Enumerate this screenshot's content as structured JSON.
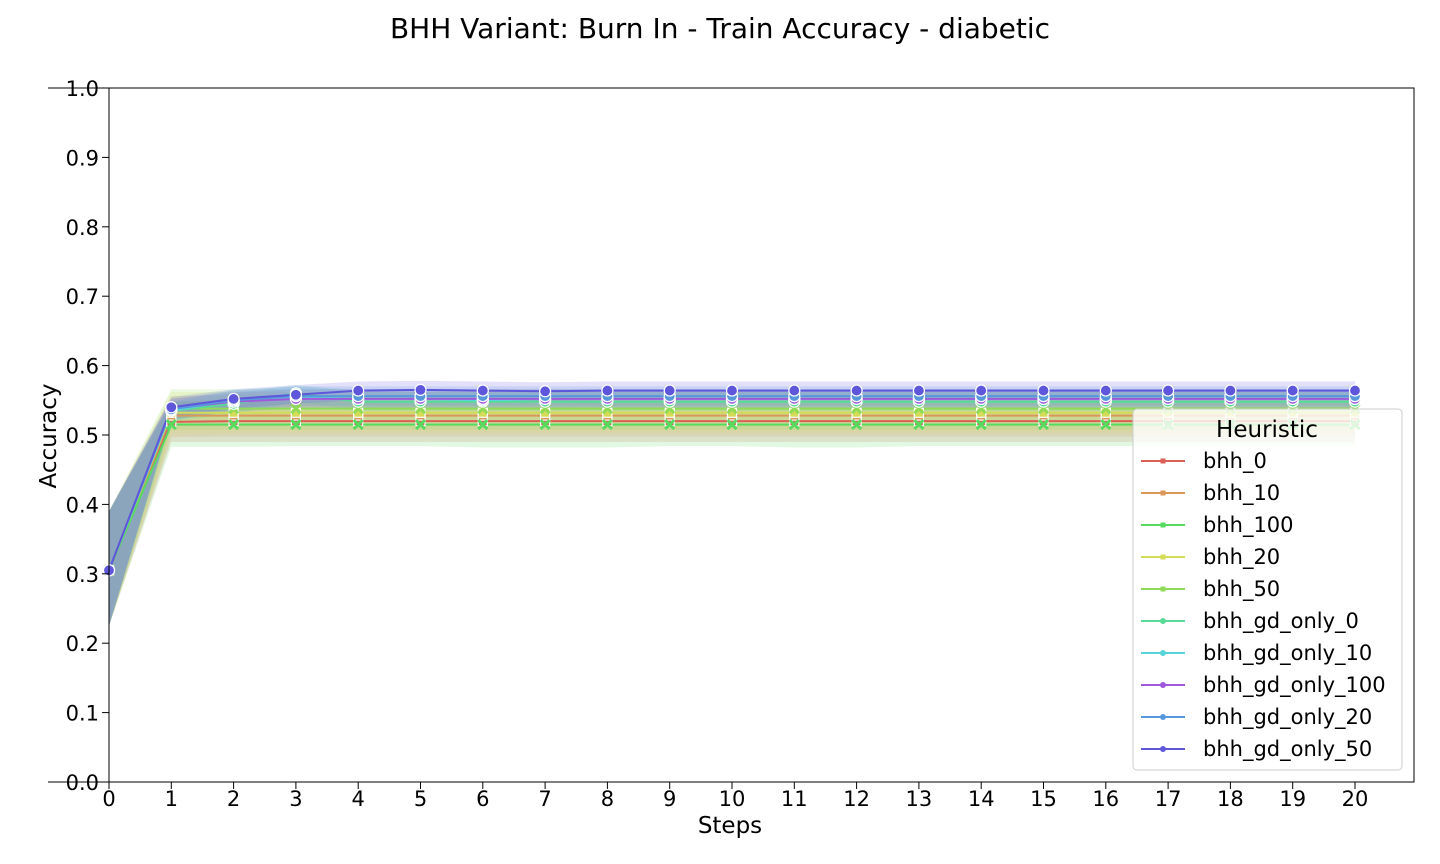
{
  "chart_data": {
    "type": "line",
    "title": "BHH Variant: Burn In - Train Accuracy - diabetic",
    "xlabel": "Steps",
    "ylabel": "Accuracy",
    "xlim": [
      0,
      21
    ],
    "ylim": [
      0,
      1
    ],
    "x_ticks": [
      0,
      1,
      2,
      3,
      4,
      5,
      6,
      7,
      8,
      9,
      10,
      11,
      12,
      13,
      14,
      15,
      16,
      17,
      18,
      19,
      20
    ],
    "y_ticks": [
      0.0,
      0.1,
      0.2,
      0.3,
      0.4,
      0.5,
      0.6,
      0.7,
      0.8,
      0.9,
      1.0
    ],
    "y_tick_labels": [
      "0.0",
      "0.1",
      "0.2",
      "0.3",
      "0.4",
      "0.5",
      "0.6",
      "0.7",
      "0.8",
      "0.9",
      "1.0"
    ],
    "grid": false,
    "legend": {
      "title": "Heuristic",
      "placement": "right"
    },
    "x": [
      0,
      1,
      2,
      3,
      4,
      5,
      6,
      7,
      8,
      9,
      10,
      11,
      12,
      13,
      14,
      15,
      16,
      17,
      18,
      19,
      20
    ],
    "series": [
      {
        "name": "bhh_0",
        "color": "#db5f57",
        "marker": "square",
        "values": [
          0.305,
          0.519,
          0.52,
          0.52,
          0.52,
          0.52,
          0.52,
          0.52,
          0.52,
          0.52,
          0.52,
          0.52,
          0.52,
          0.52,
          0.52,
          0.52,
          0.52,
          0.52,
          0.52,
          0.52,
          0.52
        ],
        "band": [
          [
            0.225,
            0.39
          ],
          [
            0.49,
            0.548
          ],
          [
            0.49,
            0.55
          ],
          [
            0.49,
            0.55
          ],
          [
            0.49,
            0.55
          ],
          [
            0.49,
            0.55
          ],
          [
            0.49,
            0.55
          ],
          [
            0.49,
            0.55
          ],
          [
            0.49,
            0.55
          ],
          [
            0.49,
            0.55
          ],
          [
            0.49,
            0.55
          ],
          [
            0.49,
            0.55
          ],
          [
            0.49,
            0.55
          ],
          [
            0.49,
            0.55
          ],
          [
            0.49,
            0.55
          ],
          [
            0.49,
            0.55
          ],
          [
            0.49,
            0.55
          ],
          [
            0.49,
            0.55
          ],
          [
            0.49,
            0.55
          ],
          [
            0.49,
            0.55
          ],
          [
            0.49,
            0.55
          ]
        ]
      },
      {
        "name": "bhh_10",
        "color": "#db9757",
        "marker": "square",
        "values": [
          0.305,
          0.528,
          0.528,
          0.528,
          0.528,
          0.528,
          0.528,
          0.528,
          0.528,
          0.528,
          0.528,
          0.528,
          0.528,
          0.528,
          0.528,
          0.528,
          0.528,
          0.528,
          0.528,
          0.528,
          0.528
        ],
        "band": [
          [
            0.225,
            0.39
          ],
          [
            0.497,
            0.556
          ],
          [
            0.498,
            0.558
          ],
          [
            0.498,
            0.558
          ],
          [
            0.498,
            0.558
          ],
          [
            0.498,
            0.558
          ],
          [
            0.498,
            0.558
          ],
          [
            0.498,
            0.558
          ],
          [
            0.498,
            0.558
          ],
          [
            0.498,
            0.558
          ],
          [
            0.498,
            0.558
          ],
          [
            0.498,
            0.558
          ],
          [
            0.498,
            0.558
          ],
          [
            0.498,
            0.558
          ],
          [
            0.498,
            0.558
          ],
          [
            0.498,
            0.558
          ],
          [
            0.498,
            0.558
          ],
          [
            0.498,
            0.558
          ],
          [
            0.498,
            0.558
          ],
          [
            0.498,
            0.558
          ],
          [
            0.498,
            0.558
          ]
        ]
      },
      {
        "name": "bhh_100",
        "color": "#57db5f",
        "marker": "x",
        "values": [
          0.305,
          0.515,
          0.515,
          0.515,
          0.515,
          0.515,
          0.515,
          0.515,
          0.515,
          0.515,
          0.515,
          0.515,
          0.515,
          0.515,
          0.515,
          0.515,
          0.515,
          0.515,
          0.515,
          0.515,
          0.515
        ],
        "band": [
          [
            0.225,
            0.39
          ],
          [
            0.483,
            0.548
          ],
          [
            0.483,
            0.548
          ],
          [
            0.484,
            0.548
          ],
          [
            0.484,
            0.548
          ],
          [
            0.484,
            0.548
          ],
          [
            0.482,
            0.548
          ],
          [
            0.482,
            0.548
          ],
          [
            0.482,
            0.548
          ],
          [
            0.484,
            0.548
          ],
          [
            0.484,
            0.548
          ],
          [
            0.482,
            0.548
          ],
          [
            0.482,
            0.548
          ],
          [
            0.484,
            0.548
          ],
          [
            0.484,
            0.548
          ],
          [
            0.484,
            0.548
          ],
          [
            0.484,
            0.548
          ],
          [
            0.484,
            0.548
          ],
          [
            0.484,
            0.548
          ],
          [
            0.484,
            0.548
          ],
          [
            0.484,
            0.548
          ]
        ]
      },
      {
        "name": "bhh_20",
        "color": "#d3db57",
        "marker": "square",
        "values": [
          0.305,
          0.532,
          0.532,
          0.532,
          0.532,
          0.532,
          0.532,
          0.532,
          0.532,
          0.532,
          0.532,
          0.532,
          0.532,
          0.532,
          0.532,
          0.532,
          0.532,
          0.532,
          0.532,
          0.532,
          0.532
        ],
        "band": [
          [
            0.225,
            0.39
          ],
          [
            0.502,
            0.562
          ],
          [
            0.503,
            0.562
          ],
          [
            0.503,
            0.562
          ],
          [
            0.503,
            0.562
          ],
          [
            0.503,
            0.562
          ],
          [
            0.503,
            0.562
          ],
          [
            0.503,
            0.562
          ],
          [
            0.503,
            0.562
          ],
          [
            0.503,
            0.562
          ],
          [
            0.503,
            0.562
          ],
          [
            0.503,
            0.562
          ],
          [
            0.503,
            0.562
          ],
          [
            0.503,
            0.562
          ],
          [
            0.503,
            0.562
          ],
          [
            0.503,
            0.562
          ],
          [
            0.503,
            0.562
          ],
          [
            0.503,
            0.562
          ],
          [
            0.503,
            0.562
          ],
          [
            0.503,
            0.562
          ],
          [
            0.503,
            0.562
          ]
        ]
      },
      {
        "name": "bhh_50",
        "color": "#8fdb57",
        "marker": "x",
        "values": [
          0.305,
          0.538,
          0.538,
          0.538,
          0.538,
          0.538,
          0.538,
          0.538,
          0.538,
          0.538,
          0.538,
          0.538,
          0.538,
          0.538,
          0.538,
          0.538,
          0.538,
          0.538,
          0.538,
          0.538,
          0.538
        ],
        "band": [
          [
            0.225,
            0.39
          ],
          [
            0.508,
            0.566
          ],
          [
            0.508,
            0.566
          ],
          [
            0.508,
            0.566
          ],
          [
            0.508,
            0.566
          ],
          [
            0.508,
            0.566
          ],
          [
            0.508,
            0.566
          ],
          [
            0.508,
            0.566
          ],
          [
            0.508,
            0.566
          ],
          [
            0.508,
            0.566
          ],
          [
            0.508,
            0.566
          ],
          [
            0.508,
            0.566
          ],
          [
            0.508,
            0.566
          ],
          [
            0.508,
            0.566
          ],
          [
            0.508,
            0.566
          ],
          [
            0.508,
            0.566
          ],
          [
            0.508,
            0.566
          ],
          [
            0.508,
            0.566
          ],
          [
            0.508,
            0.566
          ],
          [
            0.508,
            0.566
          ],
          [
            0.508,
            0.566
          ]
        ]
      },
      {
        "name": "bhh_gd_only_0",
        "color": "#57db97",
        "marker": "circle",
        "values": [
          0.305,
          0.535,
          0.545,
          0.56,
          0.548,
          0.548,
          0.548,
          0.548,
          0.548,
          0.548,
          0.548,
          0.548,
          0.548,
          0.548,
          0.548,
          0.548,
          0.548,
          0.548,
          0.548,
          0.548,
          0.548
        ],
        "band": [
          [
            0.225,
            0.39
          ],
          [
            0.52,
            0.548
          ],
          [
            0.53,
            0.56
          ],
          [
            0.548,
            0.572
          ],
          [
            0.535,
            0.562
          ],
          [
            0.535,
            0.562
          ],
          [
            0.535,
            0.562
          ],
          [
            0.535,
            0.562
          ],
          [
            0.535,
            0.562
          ],
          [
            0.535,
            0.562
          ],
          [
            0.535,
            0.562
          ],
          [
            0.535,
            0.562
          ],
          [
            0.535,
            0.562
          ],
          [
            0.535,
            0.562
          ],
          [
            0.535,
            0.562
          ],
          [
            0.535,
            0.562
          ],
          [
            0.535,
            0.562
          ],
          [
            0.535,
            0.562
          ],
          [
            0.535,
            0.562
          ],
          [
            0.535,
            0.562
          ],
          [
            0.535,
            0.562
          ]
        ]
      },
      {
        "name": "bhh_gd_only_10",
        "color": "#57d3db",
        "marker": "circle",
        "values": [
          0.305,
          0.535,
          0.55,
          0.555,
          0.552,
          0.552,
          0.55,
          0.552,
          0.552,
          0.552,
          0.552,
          0.552,
          0.552,
          0.552,
          0.552,
          0.552,
          0.552,
          0.552,
          0.552,
          0.552,
          0.552
        ],
        "band": [
          [
            0.225,
            0.39
          ],
          [
            0.52,
            0.548
          ],
          [
            0.535,
            0.565
          ],
          [
            0.54,
            0.57
          ],
          [
            0.538,
            0.566
          ],
          [
            0.538,
            0.566
          ],
          [
            0.536,
            0.564
          ],
          [
            0.538,
            0.566
          ],
          [
            0.538,
            0.566
          ],
          [
            0.538,
            0.566
          ],
          [
            0.538,
            0.566
          ],
          [
            0.538,
            0.566
          ],
          [
            0.538,
            0.566
          ],
          [
            0.538,
            0.566
          ],
          [
            0.538,
            0.566
          ],
          [
            0.538,
            0.566
          ],
          [
            0.538,
            0.566
          ],
          [
            0.538,
            0.566
          ],
          [
            0.538,
            0.566
          ],
          [
            0.538,
            0.566
          ],
          [
            0.538,
            0.566
          ]
        ]
      },
      {
        "name": "bhh_gd_only_100",
        "color": "#9f57db",
        "marker": "circle",
        "values": [
          0.305,
          0.538,
          0.548,
          0.552,
          0.552,
          0.552,
          0.552,
          0.552,
          0.552,
          0.552,
          0.552,
          0.552,
          0.552,
          0.552,
          0.552,
          0.552,
          0.552,
          0.552,
          0.552,
          0.552,
          0.552
        ],
        "band": [
          [
            0.225,
            0.39
          ],
          [
            0.522,
            0.552
          ],
          [
            0.534,
            0.562
          ],
          [
            0.538,
            0.566
          ],
          [
            0.538,
            0.566
          ],
          [
            0.538,
            0.566
          ],
          [
            0.538,
            0.566
          ],
          [
            0.538,
            0.566
          ],
          [
            0.538,
            0.566
          ],
          [
            0.538,
            0.566
          ],
          [
            0.538,
            0.566
          ],
          [
            0.538,
            0.566
          ],
          [
            0.538,
            0.566
          ],
          [
            0.538,
            0.566
          ],
          [
            0.538,
            0.566
          ],
          [
            0.538,
            0.566
          ],
          [
            0.538,
            0.566
          ],
          [
            0.538,
            0.566
          ],
          [
            0.538,
            0.566
          ],
          [
            0.538,
            0.566
          ],
          [
            0.538,
            0.566
          ]
        ]
      },
      {
        "name": "bhh_gd_only_20",
        "color": "#5797db",
        "marker": "circle",
        "values": [
          0.305,
          0.537,
          0.55,
          0.556,
          0.556,
          0.556,
          0.556,
          0.556,
          0.556,
          0.556,
          0.556,
          0.556,
          0.556,
          0.556,
          0.556,
          0.556,
          0.556,
          0.556,
          0.556,
          0.556,
          0.556
        ],
        "band": [
          [
            0.225,
            0.39
          ],
          [
            0.522,
            0.552
          ],
          [
            0.536,
            0.564
          ],
          [
            0.542,
            0.57
          ],
          [
            0.542,
            0.57
          ],
          [
            0.542,
            0.57
          ],
          [
            0.542,
            0.57
          ],
          [
            0.542,
            0.57
          ],
          [
            0.542,
            0.57
          ],
          [
            0.542,
            0.57
          ],
          [
            0.542,
            0.57
          ],
          [
            0.542,
            0.57
          ],
          [
            0.542,
            0.57
          ],
          [
            0.542,
            0.57
          ],
          [
            0.542,
            0.57
          ],
          [
            0.542,
            0.57
          ],
          [
            0.542,
            0.57
          ],
          [
            0.542,
            0.57
          ],
          [
            0.542,
            0.57
          ],
          [
            0.542,
            0.57
          ],
          [
            0.542,
            0.57
          ]
        ]
      },
      {
        "name": "bhh_gd_only_50",
        "color": "#5f57db",
        "marker": "circle",
        "values": [
          0.305,
          0.54,
          0.552,
          0.558,
          0.564,
          0.565,
          0.564,
          0.563,
          0.564,
          0.564,
          0.564,
          0.564,
          0.564,
          0.564,
          0.564,
          0.564,
          0.564,
          0.564,
          0.564,
          0.564,
          0.564
        ],
        "band": [
          [
            0.225,
            0.39
          ],
          [
            0.526,
            0.555
          ],
          [
            0.538,
            0.566
          ],
          [
            0.545,
            0.572
          ],
          [
            0.55,
            0.577
          ],
          [
            0.551,
            0.578
          ],
          [
            0.55,
            0.577
          ],
          [
            0.549,
            0.576
          ],
          [
            0.55,
            0.577
          ],
          [
            0.55,
            0.577
          ],
          [
            0.55,
            0.577
          ],
          [
            0.55,
            0.577
          ],
          [
            0.55,
            0.577
          ],
          [
            0.55,
            0.577
          ],
          [
            0.55,
            0.577
          ],
          [
            0.55,
            0.577
          ],
          [
            0.55,
            0.577
          ],
          [
            0.55,
            0.577
          ],
          [
            0.55,
            0.577
          ],
          [
            0.55,
            0.577
          ],
          [
            0.55,
            0.577
          ]
        ]
      }
    ]
  }
}
